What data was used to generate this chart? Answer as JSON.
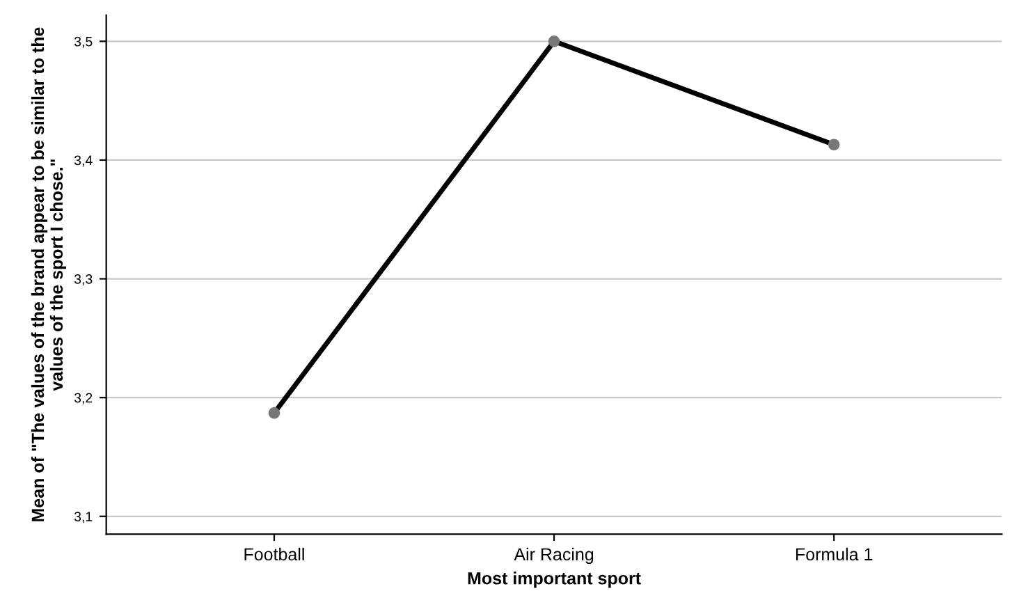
{
  "chart_data": {
    "type": "line",
    "xlabel": "Most important sport",
    "ylabel": "Mean of \"The values of the brand appear to be similar to the values of the sport I chose.\"",
    "categories": [
      "Football",
      "Air Racing",
      "Formula 1"
    ],
    "series": [
      {
        "color": "#000000",
        "values": [
          3.187,
          3.5,
          3.413
        ]
      }
    ],
    "ylim": [
      3.085,
      3.522
    ],
    "yticks": [
      {
        "value": 3.1,
        "label": "3,1"
      },
      {
        "value": 3.2,
        "label": "3,2"
      },
      {
        "value": 3.3,
        "label": "3,3"
      },
      {
        "value": 3.4,
        "label": "3,4"
      },
      {
        "value": 3.5,
        "label": "3,5"
      }
    ],
    "grid": "y",
    "marker": "circle",
    "line_style": "solid",
    "legend": false
  }
}
